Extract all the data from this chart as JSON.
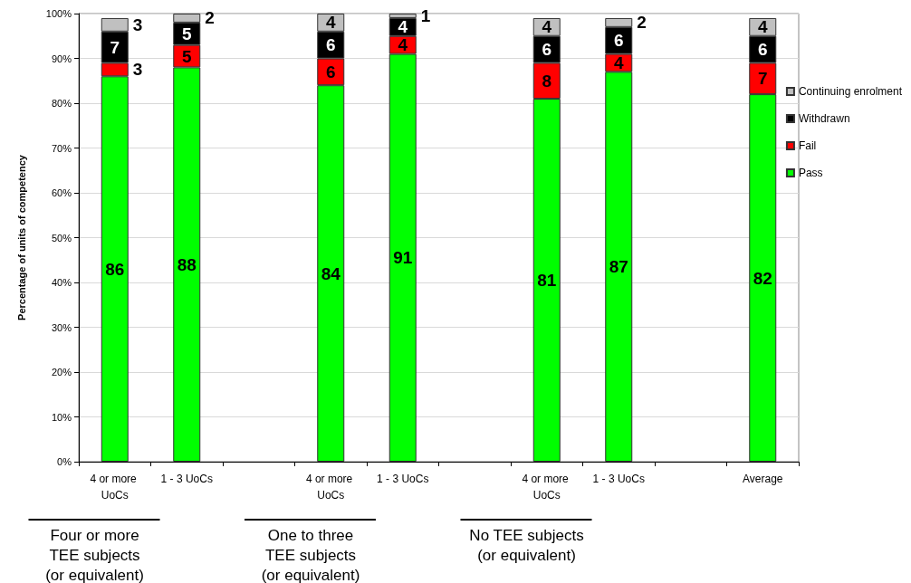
{
  "chart_data": {
    "type": "bar",
    "stacked": true,
    "ylabel": "Percentage of units of competency",
    "categories": [
      "4 or more UoCs",
      "1 - 3 UoCs",
      null,
      "4 or more UoCs",
      "1 - 3 UoCs",
      null,
      "4 or more UoCs",
      "1 - 3 UoCs",
      null,
      "Average"
    ],
    "series": [
      {
        "name": "Pass",
        "color": "#00ff00",
        "values": [
          86,
          88,
          null,
          84,
          91,
          null,
          81,
          87,
          null,
          82
        ]
      },
      {
        "name": "Fail",
        "color": "#ff0000",
        "values": [
          3,
          5,
          null,
          6,
          4,
          null,
          8,
          4,
          null,
          7
        ]
      },
      {
        "name": "Withdrawn",
        "color": "#000000",
        "values": [
          7,
          5,
          null,
          6,
          4,
          null,
          6,
          6,
          null,
          6
        ]
      },
      {
        "name": "Continuing enrolment",
        "color": "#c0c0c0",
        "values": [
          3,
          2,
          null,
          4,
          1,
          null,
          4,
          2,
          null,
          4
        ]
      }
    ],
    "ylim": [
      0,
      100
    ],
    "yticks": [
      {
        "value": 0,
        "label": "0%"
      },
      {
        "value": 10,
        "label": "10%"
      },
      {
        "value": 20,
        "label": "20%"
      },
      {
        "value": 30,
        "label": "30%"
      },
      {
        "value": 40,
        "label": "40%"
      },
      {
        "value": 50,
        "label": "50%"
      },
      {
        "value": 60,
        "label": "60%"
      },
      {
        "value": 70,
        "label": "70%"
      },
      {
        "value": 80,
        "label": "80%"
      },
      {
        "value": 90,
        "label": "90%"
      },
      {
        "value": 100,
        "label": "100%"
      }
    ],
    "grid": "y",
    "legend": "right",
    "data_labels": true,
    "annotations": [
      "Four or more\nTEE subjects\n(or equivalent)",
      "One to three\nTEE subjects\n(or equivalent)",
      "No TEE subjects\n(or equivalent)"
    ]
  }
}
